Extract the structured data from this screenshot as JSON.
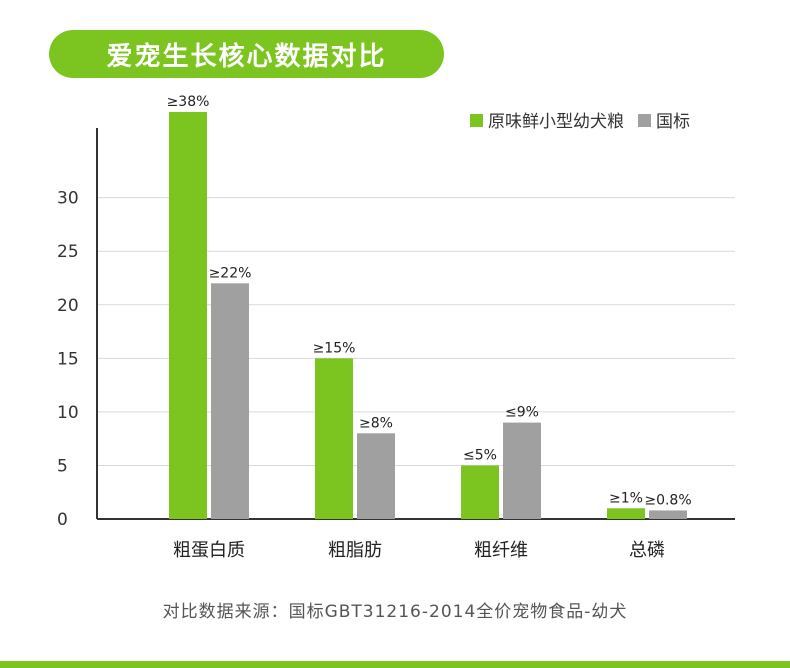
{
  "title": "爱宠生长核心数据对比",
  "source_note": "对比数据来源：国标GBT31216-2014全价宠物食品-幼犬",
  "chart_data": {
    "type": "bar",
    "title": "爱宠生长核心数据对比",
    "categories": [
      "粗蛋白质",
      "粗脂肪",
      "粗纤维",
      "总磷"
    ],
    "series": [
      {
        "name": "原味鲜小型幼犬粮",
        "color": "#7cc41f",
        "values": [
          38,
          15,
          5,
          1
        ],
        "labels": [
          "≥38%",
          "≥15%",
          "≤5%",
          "≥1%"
        ]
      },
      {
        "name": "国标",
        "color": "#a0a0a0",
        "values": [
          22,
          8,
          9,
          0.8
        ],
        "labels": [
          "≥22%",
          "≥8%",
          "≤9%",
          "≥0.8%"
        ]
      }
    ],
    "yticks": [
      0,
      5,
      10,
      15,
      20,
      25,
      30
    ],
    "ylim": [
      0,
      36.5
    ],
    "xlabel": "",
    "ylabel": "",
    "grid": true,
    "legend": "top-right"
  }
}
